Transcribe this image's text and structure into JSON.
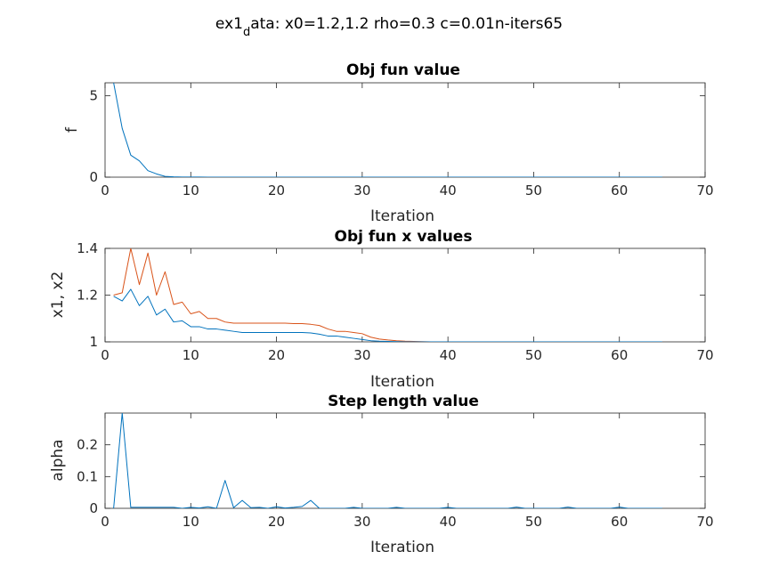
{
  "figure": {
    "suptitle_main": "ex1",
    "suptitle_sub": "d",
    "suptitle_rest": "ata: x0=1.2,1.2 rho=0.3 c=0.01n-iters65"
  },
  "colors": {
    "series1": "#0072BD",
    "series2": "#D95319",
    "axes": "#262626"
  },
  "chart_data": [
    {
      "type": "line",
      "title": "Obj fun value",
      "xlabel": "Iteration",
      "ylabel": "f",
      "xlim": [
        0,
        70
      ],
      "ylim": [
        0,
        5.8
      ],
      "xticks": [
        0,
        10,
        20,
        30,
        40,
        50,
        60,
        70
      ],
      "yticks": [
        0,
        5
      ],
      "grid": false,
      "series": [
        {
          "x": [
            1,
            2,
            3,
            4,
            5,
            6,
            7,
            8,
            9,
            10,
            11,
            12,
            13,
            14,
            15,
            16,
            17,
            18,
            19,
            20,
            21,
            22,
            23,
            24,
            25,
            26,
            27,
            28,
            29,
            30,
            31,
            32,
            33,
            34,
            35,
            36,
            37,
            38,
            39,
            40,
            41,
            42,
            43,
            44,
            45,
            46,
            47,
            48,
            49,
            50,
            51,
            52,
            53,
            54,
            55,
            56,
            57,
            58,
            59,
            60,
            61,
            62,
            63,
            64,
            65
          ],
          "values": [
            5.8,
            3.0,
            1.35,
            1.0,
            0.4,
            0.2,
            0.05,
            0.02,
            0.01,
            0.005,
            0.004,
            0.003,
            0.003,
            0.002,
            0.002,
            0.002,
            0.002,
            0.002,
            0.002,
            0.001,
            0.001,
            0.001,
            0.001,
            0.001,
            0.001,
            0.001,
            0.001,
            0.001,
            0.001,
            0.001,
            0.001,
            0,
            0,
            0,
            0,
            0,
            0,
            0,
            0,
            0,
            0,
            0,
            0,
            0,
            0,
            0,
            0,
            0,
            0,
            0,
            0,
            0,
            0,
            0,
            0,
            0,
            0,
            0,
            0,
            0,
            0,
            0,
            0,
            0,
            0
          ]
        }
      ]
    },
    {
      "type": "line",
      "title": "Obj fun x values",
      "xlabel": "Iteration",
      "ylabel": "x1, x2",
      "xlim": [
        0,
        70
      ],
      "ylim": [
        1,
        1.4
      ],
      "xticks": [
        0,
        10,
        20,
        30,
        40,
        50,
        60,
        70
      ],
      "yticks": [
        1,
        1.2,
        1.4
      ],
      "ytick_labels": [
        "1",
        "1.2",
        "1.4"
      ],
      "grid": false,
      "series": [
        {
          "x": [
            1,
            2,
            3,
            4,
            5,
            6,
            7,
            8,
            9,
            10,
            11,
            12,
            13,
            14,
            15,
            16,
            17,
            18,
            19,
            20,
            21,
            22,
            23,
            24,
            25,
            26,
            27,
            28,
            29,
            30,
            31,
            32,
            33,
            34,
            35,
            36,
            37,
            38,
            39,
            40,
            41,
            42,
            43,
            44,
            45,
            46,
            47,
            48,
            49,
            50,
            51,
            52,
            53,
            54,
            55,
            56,
            57,
            58,
            59,
            60,
            61,
            62,
            63,
            64,
            65
          ],
          "values": [
            1.195,
            1.175,
            1.225,
            1.155,
            1.195,
            1.115,
            1.14,
            1.085,
            1.09,
            1.065,
            1.065,
            1.055,
            1.055,
            1.05,
            1.045,
            1.04,
            1.04,
            1.04,
            1.04,
            1.04,
            1.04,
            1.04,
            1.04,
            1.038,
            1.033,
            1.025,
            1.025,
            1.02,
            1.015,
            1.01,
            1.005,
            1.003,
            1.002,
            1.001,
            1.0,
            1.0,
            1.0,
            1.0,
            1.0,
            1.0,
            1.0,
            1.0,
            1.0,
            1.0,
            1.0,
            1.0,
            1.0,
            1.0,
            1.0,
            1.0,
            1.0,
            1.0,
            1.0,
            1.0,
            1.0,
            1.0,
            1.0,
            1.0,
            1.0,
            1.0,
            1.0,
            1.0,
            1.0,
            1.0,
            1.0
          ]
        },
        {
          "x": [
            1,
            2,
            3,
            4,
            5,
            6,
            7,
            8,
            9,
            10,
            11,
            12,
            13,
            14,
            15,
            16,
            17,
            18,
            19,
            20,
            21,
            22,
            23,
            24,
            25,
            26,
            27,
            28,
            29,
            30,
            31,
            32,
            33,
            34,
            35,
            36,
            37,
            38,
            39,
            40,
            41,
            42,
            43,
            44,
            45,
            46,
            47,
            48,
            49,
            50,
            51,
            52,
            53,
            54,
            55,
            56,
            57,
            58,
            59,
            60,
            61,
            62,
            63,
            64,
            65
          ],
          "values": [
            1.2,
            1.21,
            1.4,
            1.245,
            1.38,
            1.2,
            1.3,
            1.16,
            1.17,
            1.12,
            1.13,
            1.1,
            1.1,
            1.085,
            1.08,
            1.08,
            1.08,
            1.08,
            1.08,
            1.08,
            1.08,
            1.078,
            1.078,
            1.075,
            1.07,
            1.055,
            1.045,
            1.045,
            1.04,
            1.035,
            1.02,
            1.012,
            1.008,
            1.005,
            1.003,
            1.002,
            1.001,
            1.0,
            1.0,
            1.0,
            1.0,
            1.0,
            1.0,
            1.0,
            1.0,
            1.0,
            1.0,
            1.0,
            1.0,
            1.0,
            1.0,
            1.0,
            1.0,
            1.0,
            1.0,
            1.0,
            1.0,
            1.0,
            1.0,
            1.0,
            1.0,
            1.0,
            1.0,
            1.0,
            1.0
          ]
        }
      ]
    },
    {
      "type": "line",
      "title": "Step length value",
      "xlabel": "Iteration",
      "ylabel": "alpha",
      "xlim": [
        0,
        70
      ],
      "ylim": [
        0,
        0.3
      ],
      "xticks": [
        0,
        10,
        20,
        30,
        40,
        50,
        60,
        70
      ],
      "yticks": [
        0,
        0.1,
        0.2
      ],
      "ytick_labels": [
        "0",
        "0.1",
        "0.2"
      ],
      "grid": false,
      "series": [
        {
          "x": [
            1,
            2,
            3,
            4,
            5,
            6,
            7,
            8,
            9,
            10,
            11,
            12,
            13,
            14,
            15,
            16,
            17,
            18,
            19,
            20,
            21,
            22,
            23,
            24,
            25,
            26,
            27,
            28,
            29,
            30,
            31,
            32,
            33,
            34,
            35,
            36,
            37,
            38,
            39,
            40,
            41,
            42,
            43,
            44,
            45,
            46,
            47,
            48,
            49,
            50,
            51,
            52,
            53,
            54,
            55,
            56,
            57,
            58,
            59,
            60,
            61,
            62,
            63,
            64,
            65
          ],
          "values": [
            0,
            0.3,
            0.003,
            0.003,
            0.003,
            0.003,
            0.003,
            0.003,
            0,
            0.003,
            0.001,
            0.005,
            0,
            0.088,
            0.002,
            0.025,
            0.002,
            0.003,
            0,
            0.005,
            0.001,
            0.003,
            0.006,
            0.025,
            0,
            0,
            0,
            0,
            0.003,
            0,
            0,
            0,
            0,
            0.003,
            0,
            0,
            0,
            0,
            0,
            0.003,
            0,
            0,
            0,
            0,
            0,
            0,
            0,
            0.004,
            0,
            0,
            0,
            0,
            0,
            0.004,
            0,
            0,
            0,
            0,
            0,
            0.004,
            0,
            0,
            0,
            0,
            0
          ]
        }
      ]
    }
  ]
}
